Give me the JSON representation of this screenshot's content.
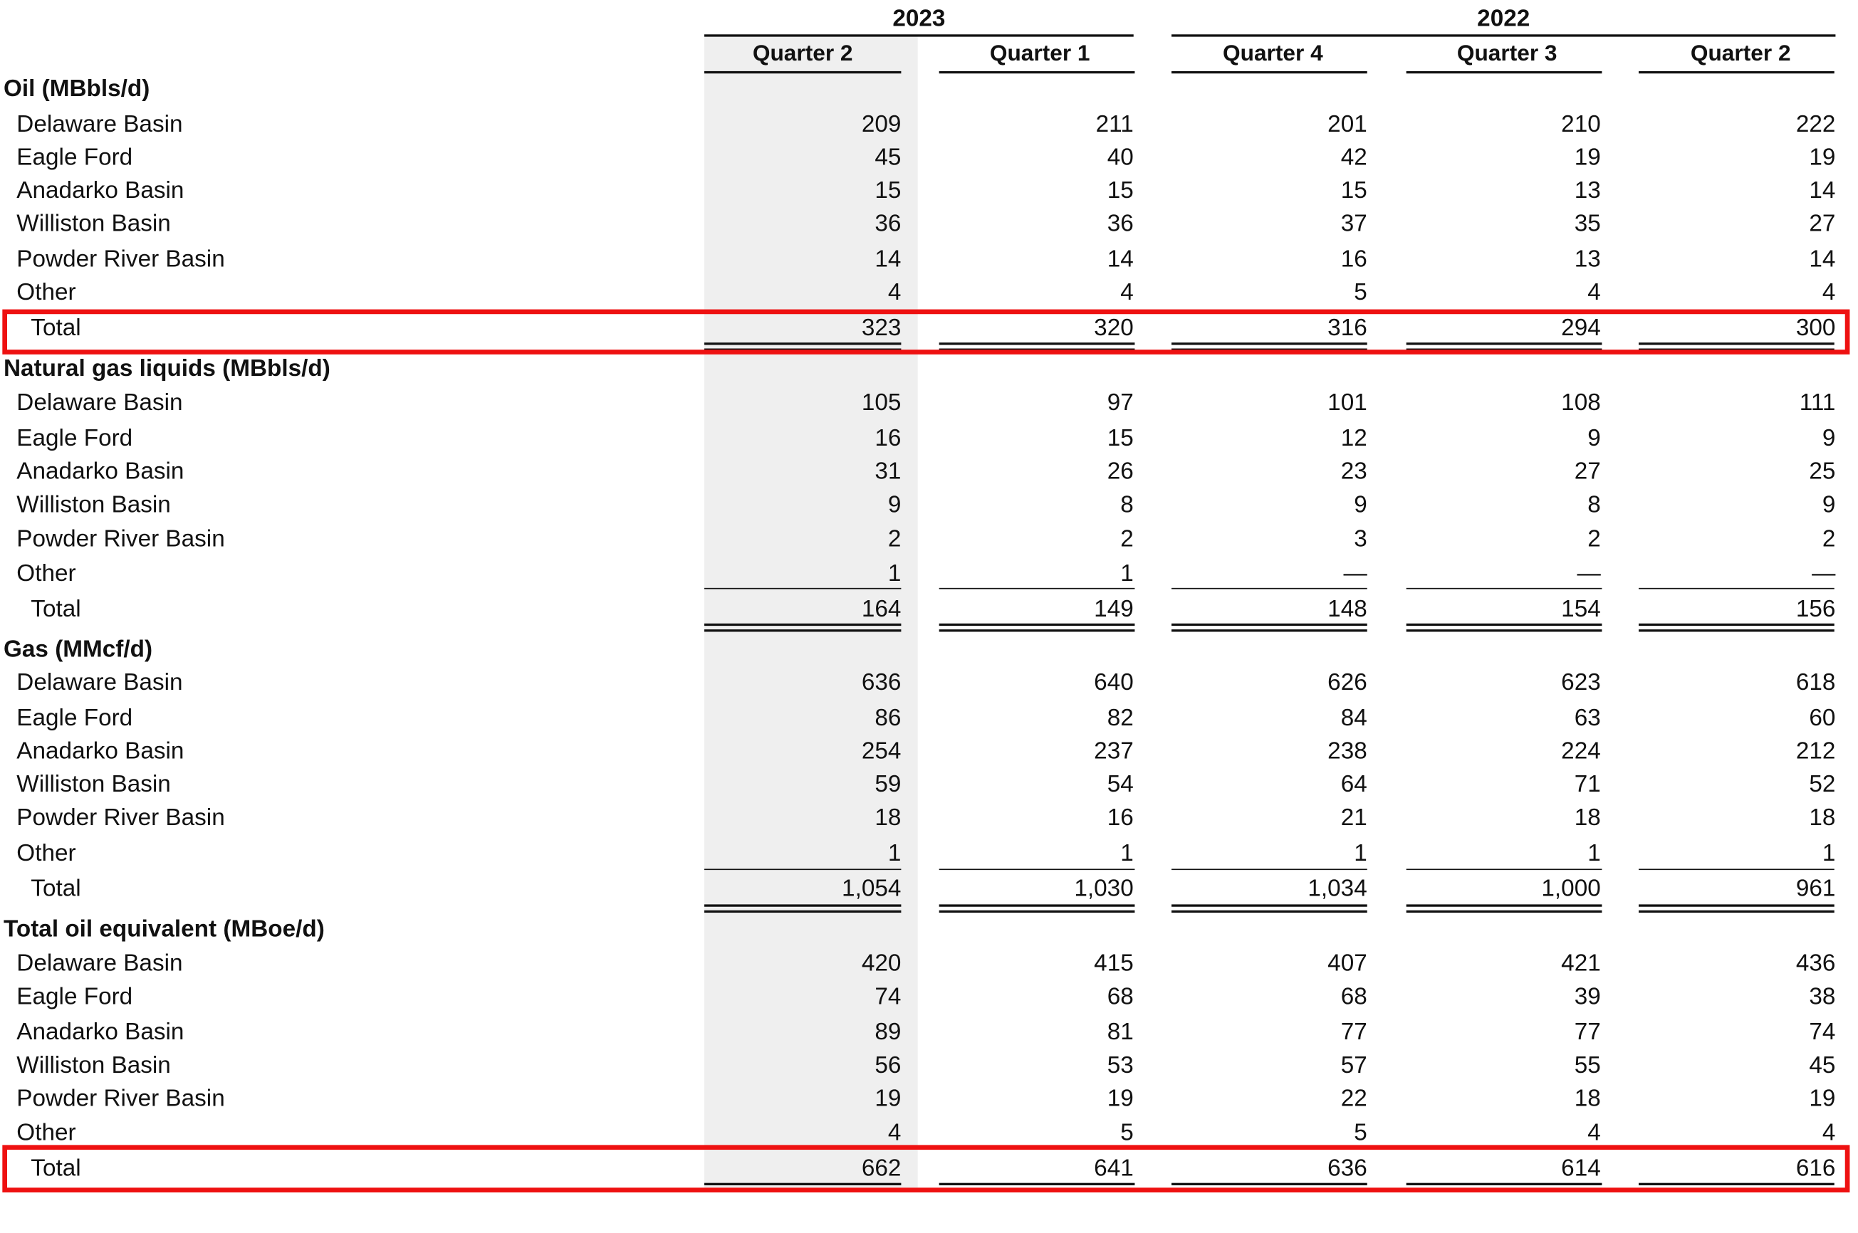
{
  "header": {
    "years": [
      {
        "label": "2023"
      },
      {
        "label": "2022"
      }
    ],
    "quarters": [
      "Quarter 2",
      "Quarter 1",
      "Quarter 4",
      "Quarter 3",
      "Quarter 2"
    ]
  },
  "sections": [
    {
      "title": "Oil (MBbls/d)",
      "rows": [
        {
          "label": "Delaware Basin",
          "values": [
            "209",
            "211",
            "201",
            "210",
            "222"
          ]
        },
        {
          "label": "Eagle Ford",
          "values": [
            "45",
            "40",
            "42",
            "19",
            "19"
          ]
        },
        {
          "label": "Anadarko Basin",
          "values": [
            "15",
            "15",
            "15",
            "13",
            "14"
          ]
        },
        {
          "label": "Williston Basin",
          "values": [
            "36",
            "36",
            "37",
            "35",
            "27"
          ]
        },
        {
          "label": "Powder River Basin",
          "values": [
            "14",
            "14",
            "16",
            "13",
            "14"
          ]
        },
        {
          "label": "Other",
          "values": [
            "4",
            "4",
            "5",
            "4",
            "4"
          ]
        }
      ],
      "total": {
        "label": "Total",
        "values": [
          "323",
          "320",
          "316",
          "294",
          "300"
        ]
      }
    },
    {
      "title": "Natural gas liquids (MBbls/d)",
      "rows": [
        {
          "label": "Delaware Basin",
          "values": [
            "105",
            "97",
            "101",
            "108",
            "111"
          ]
        },
        {
          "label": "Eagle Ford",
          "values": [
            "16",
            "15",
            "12",
            "9",
            "9"
          ]
        },
        {
          "label": "Anadarko Basin",
          "values": [
            "31",
            "26",
            "23",
            "27",
            "25"
          ]
        },
        {
          "label": "Williston Basin",
          "values": [
            "9",
            "8",
            "9",
            "8",
            "9"
          ]
        },
        {
          "label": "Powder River Basin",
          "values": [
            "2",
            "2",
            "3",
            "2",
            "2"
          ]
        },
        {
          "label": "Other",
          "values": [
            "1",
            "1",
            "—",
            "—",
            "—"
          ]
        }
      ],
      "total": {
        "label": "Total",
        "values": [
          "164",
          "149",
          "148",
          "154",
          "156"
        ]
      }
    },
    {
      "title": "Gas (MMcf/d)",
      "rows": [
        {
          "label": "Delaware Basin",
          "values": [
            "636",
            "640",
            "626",
            "623",
            "618"
          ]
        },
        {
          "label": "Eagle Ford",
          "values": [
            "86",
            "82",
            "84",
            "63",
            "60"
          ]
        },
        {
          "label": "Anadarko Basin",
          "values": [
            "254",
            "237",
            "238",
            "224",
            "212"
          ]
        },
        {
          "label": "Williston Basin",
          "values": [
            "59",
            "54",
            "64",
            "71",
            "52"
          ]
        },
        {
          "label": "Powder River Basin",
          "values": [
            "18",
            "16",
            "21",
            "18",
            "18"
          ]
        },
        {
          "label": "Other",
          "values": [
            "1",
            "1",
            "1",
            "1",
            "1"
          ]
        }
      ],
      "total": {
        "label": "Total",
        "values": [
          "1,054",
          "1,030",
          "1,034",
          "1,000",
          "961"
        ]
      }
    },
    {
      "title": "Total oil equivalent (MBoe/d)",
      "rows": [
        {
          "label": "Delaware Basin",
          "values": [
            "420",
            "415",
            "407",
            "421",
            "436"
          ]
        },
        {
          "label": "Eagle Ford",
          "values": [
            "74",
            "68",
            "68",
            "39",
            "38"
          ]
        },
        {
          "label": "Anadarko Basin",
          "values": [
            "89",
            "81",
            "77",
            "77",
            "74"
          ]
        },
        {
          "label": "Williston Basin",
          "values": [
            "56",
            "53",
            "57",
            "55",
            "45"
          ]
        },
        {
          "label": "Powder River Basin",
          "values": [
            "19",
            "19",
            "22",
            "18",
            "19"
          ]
        },
        {
          "label": "Other",
          "values": [
            "4",
            "5",
            "5",
            "4",
            "4"
          ]
        }
      ],
      "total": {
        "label": "Total",
        "values": [
          "662",
          "641",
          "636",
          "614",
          "616"
        ]
      }
    }
  ],
  "highlight_color": "#ee1111",
  "shade_color": "#efefef"
}
